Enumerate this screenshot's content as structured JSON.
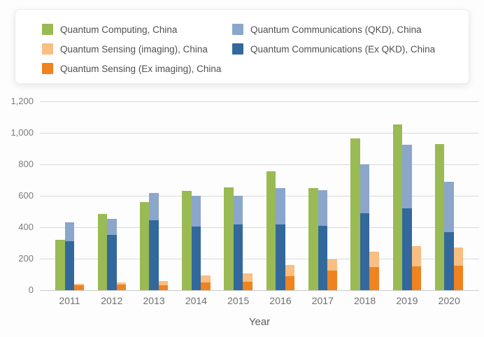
{
  "legend": {
    "items": [
      {
        "label": "Quantum Computing, China",
        "series_id": "computing"
      },
      {
        "label": "Quantum Communications (QKD), China",
        "series_id": "comm_qkd"
      },
      {
        "label": "Quantum Sensing (imaging), China",
        "series_id": "sensing_imaging"
      },
      {
        "label": "Quantum Communications (Ex QKD), China",
        "series_id": "comm_ex_qkd"
      },
      {
        "label": "Quantum Sensing (Ex imaging), China",
        "series_id": "sensing_ex_imaging"
      }
    ]
  },
  "chart_data": {
    "type": "bar",
    "title": "",
    "xlabel": "Year",
    "ylabel": "",
    "ylim": [
      0,
      1200
    ],
    "ytick_step": 200,
    "ytick_labels": [
      "0",
      "200",
      "400",
      "600",
      "800",
      "1,000",
      "1,200"
    ],
    "grid": true,
    "legend_position": "top",
    "categories": [
      "2011",
      "2012",
      "2013",
      "2014",
      "2015",
      "2016",
      "2017",
      "2018",
      "2019",
      "2020"
    ],
    "bar_layout": [
      {
        "bar": "computing",
        "segments": [
          "computing"
        ]
      },
      {
        "bar": "communications",
        "segments": [
          "comm_ex_qkd",
          "comm_qkd"
        ]
      },
      {
        "bar": "sensing",
        "segments": [
          "sensing_ex_imaging",
          "sensing_imaging"
        ]
      }
    ],
    "series": [
      {
        "id": "computing",
        "name": "Quantum Computing, China",
        "color": "#9aba53",
        "values": [
          320,
          485,
          560,
          630,
          655,
          755,
          650,
          965,
          1055,
          930
        ]
      },
      {
        "id": "comm_qkd",
        "name": "Quantum Communications (QKD), China",
        "color": "#8ba6cb",
        "values": [
          120,
          105,
          175,
          195,
          180,
          230,
          225,
          310,
          405,
          320
        ]
      },
      {
        "id": "comm_ex_qkd",
        "name": "Quantum Communications (Ex QKD), China",
        "color": "#33689c",
        "values": [
          310,
          350,
          445,
          405,
          420,
          420,
          410,
          490,
          520,
          370
        ]
      },
      {
        "id": "sensing_imaging",
        "name": "Quantum Sensing (imaging), China",
        "color": "#f9be81",
        "values": [
          10,
          15,
          30,
          45,
          50,
          70,
          70,
          100,
          130,
          115
        ]
      },
      {
        "id": "sensing_ex_imaging",
        "name": "Quantum Sensing (Ex imaging), China",
        "color": "#ef831f",
        "values": [
          30,
          35,
          30,
          50,
          55,
          90,
          125,
          145,
          150,
          155
        ]
      }
    ]
  }
}
